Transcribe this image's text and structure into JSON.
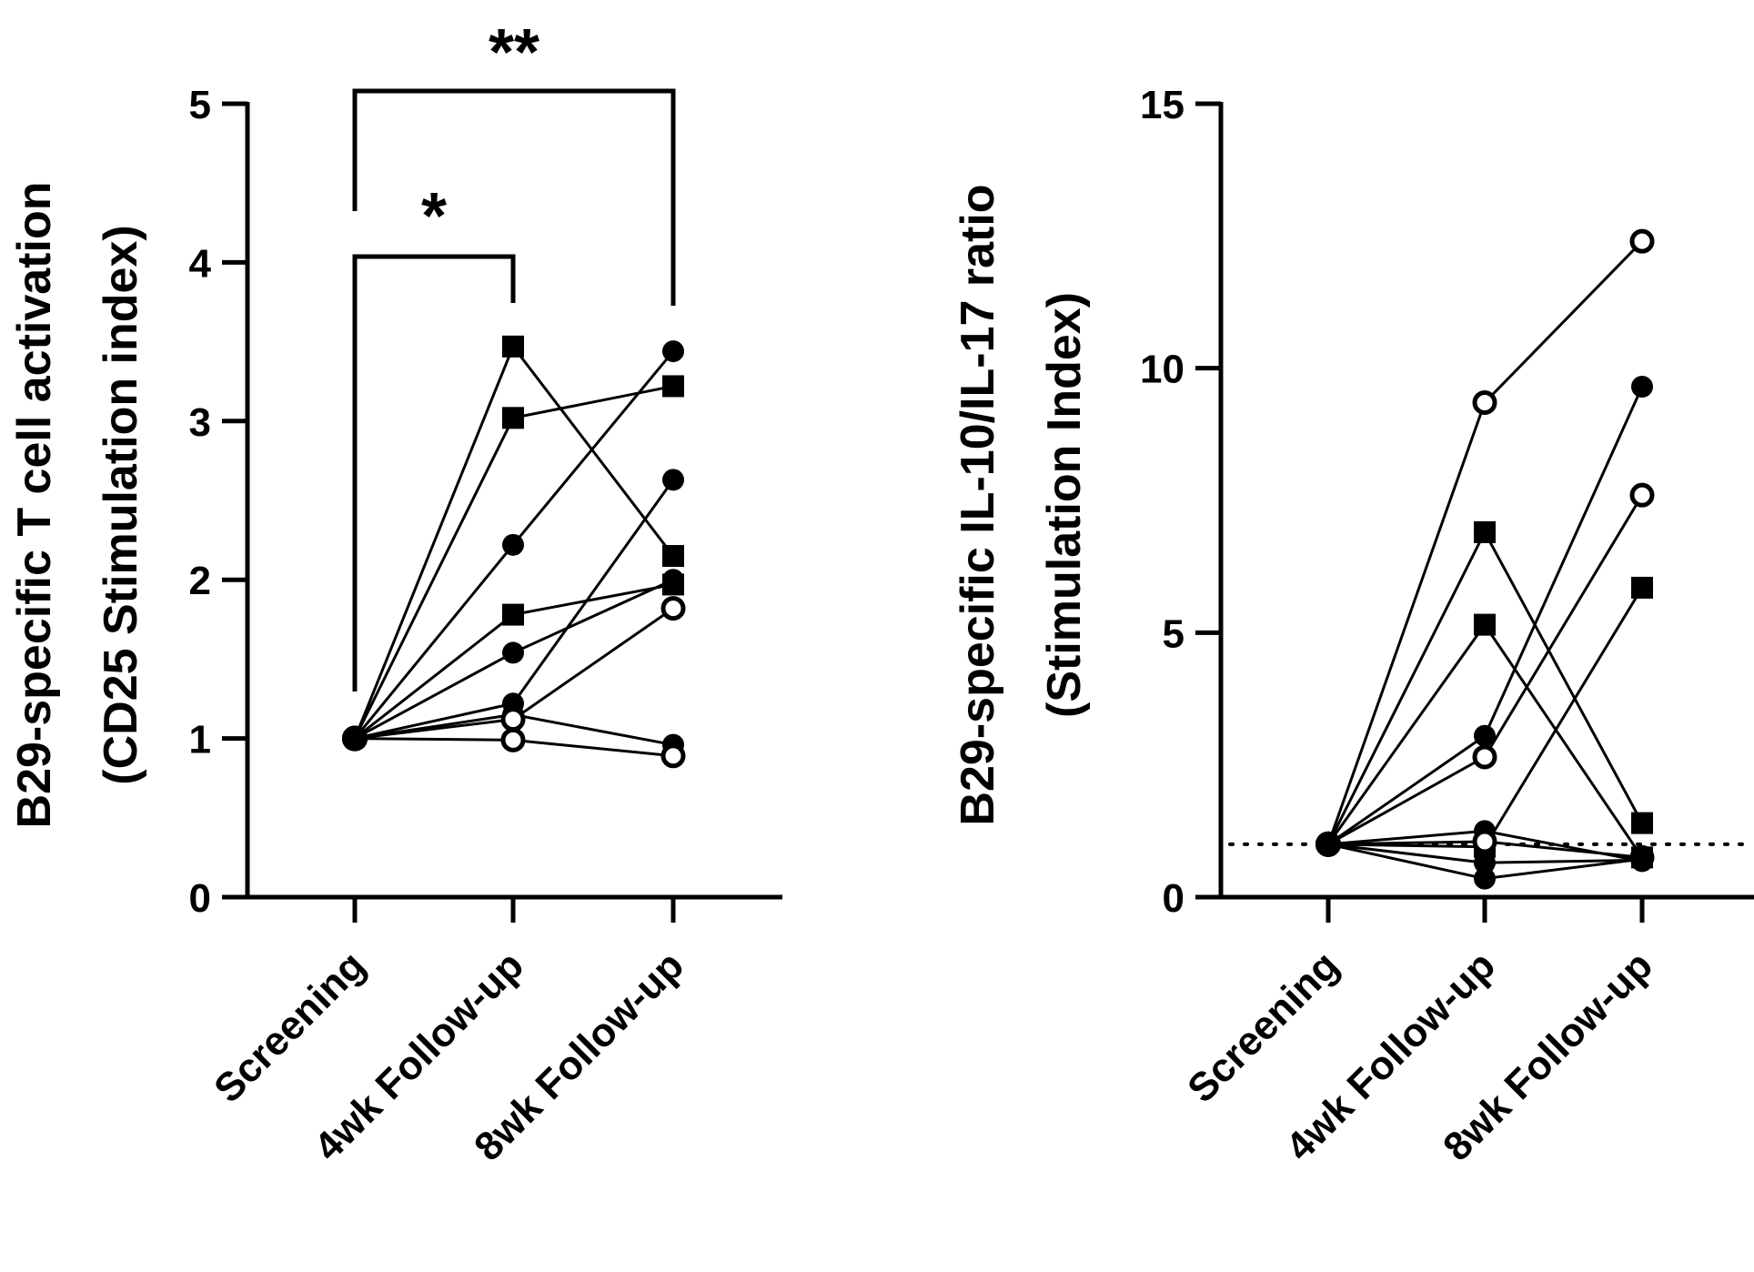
{
  "chart_data": [
    {
      "type": "line",
      "categories": [
        "Screening",
        "4wk Follow-up",
        "8wk Follow-up"
      ],
      "ylabel_lines": [
        "B29-specific T cell activation",
        "(CD25 Stimulation index)"
      ],
      "ylim": [
        0,
        5
      ],
      "yticks": [
        0,
        1,
        2,
        3,
        4,
        5
      ],
      "reference_line": null,
      "significance": [
        {
          "from": "Screening",
          "to": "4wk Follow-up",
          "label": "*"
        },
        {
          "from": "Screening",
          "to": "8wk Follow-up",
          "label": "**"
        }
      ],
      "series": [
        {
          "marker": "square",
          "values": [
            1.0,
            3.47,
            2.15
          ]
        },
        {
          "marker": "square",
          "values": [
            1.0,
            3.02,
            3.22
          ]
        },
        {
          "marker": "circle",
          "values": [
            1.0,
            2.22,
            3.44
          ]
        },
        {
          "marker": "square",
          "values": [
            1.0,
            1.78,
            1.97
          ]
        },
        {
          "marker": "circle",
          "values": [
            1.0,
            1.54,
            2.0
          ]
        },
        {
          "marker": "circle",
          "values": [
            1.0,
            1.22,
            2.63
          ]
        },
        {
          "marker": "circle",
          "values": [
            1.0,
            1.15,
            0.96
          ]
        },
        {
          "marker": "open-circle",
          "values": [
            1.0,
            1.12,
            1.82
          ]
        },
        {
          "marker": "open-circle",
          "values": [
            1.0,
            0.99,
            0.89
          ]
        }
      ]
    },
    {
      "type": "line",
      "categories": [
        "Screening",
        "4wk Follow-up",
        "8wk Follow-up"
      ],
      "ylabel_lines": [
        "B29-specific IL-10/IL-17 ratio",
        "(Stimulation Index)"
      ],
      "ylim": [
        0,
        15
      ],
      "yticks": [
        0,
        5,
        10,
        15
      ],
      "reference_line": 1,
      "significance": [],
      "series": [
        {
          "marker": "open-circle",
          "values": [
            1.0,
            9.35,
            12.4
          ]
        },
        {
          "marker": "square",
          "values": [
            1.0,
            6.9,
            1.4
          ]
        },
        {
          "marker": "square",
          "values": [
            1.0,
            5.15,
            0.75
          ]
        },
        {
          "marker": "circle",
          "values": [
            1.0,
            3.05,
            9.65
          ]
        },
        {
          "marker": "open-circle",
          "values": [
            1.0,
            2.65,
            7.6
          ]
        },
        {
          "marker": "circle",
          "values": [
            1.0,
            1.25,
            0.68
          ]
        },
        {
          "marker": "square",
          "values": [
            1.0,
            0.95,
            5.85
          ]
        },
        {
          "marker": "open-circle",
          "values": [
            1.0,
            1.05,
            0.75
          ]
        },
        {
          "marker": "circle",
          "values": [
            1.0,
            0.65,
            0.7
          ]
        },
        {
          "marker": "circle",
          "values": [
            1.0,
            0.35,
            0.72
          ]
        }
      ]
    }
  ]
}
